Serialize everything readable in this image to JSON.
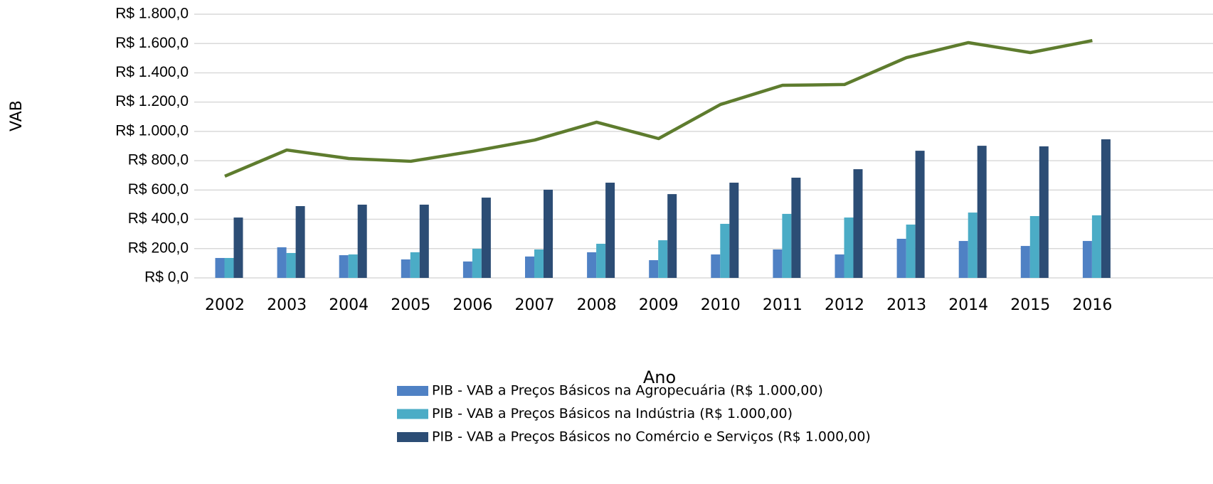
{
  "chart_data": {
    "type": "bar_line",
    "xlabel": "Ano",
    "ylabel": "VAB",
    "categories": [
      "2002",
      "2003",
      "2004",
      "2005",
      "2006",
      "2007",
      "2008",
      "2009",
      "2010",
      "2011",
      "2012",
      "2013",
      "2014",
      "2015",
      "2016"
    ],
    "ylim": [
      0,
      1800
    ],
    "yticks": [
      {
        "value": 0,
        "label": "R$ 0,0"
      },
      {
        "value": 200,
        "label": "R$ 200,0"
      },
      {
        "value": 400,
        "label": "R$ 400,0"
      },
      {
        "value": 600,
        "label": "R$ 600,0"
      },
      {
        "value": 800,
        "label": "R$ 800,0"
      },
      {
        "value": 1000,
        "label": "R$ 1.000,0"
      },
      {
        "value": 1200,
        "label": "R$ 1.200,0"
      },
      {
        "value": 1400,
        "label": "R$ 1.400,0"
      },
      {
        "value": 1600,
        "label": "R$ 1.600,0"
      },
      {
        "value": 1800,
        "label": "R$ 1.800,0"
      }
    ],
    "grid": true,
    "series": [
      {
        "name": "PIB - VAB a Preços Básicos na Agropecuária (R$ 1.000,00)",
        "type": "bar",
        "color": "#4f81c4",
        "values": [
          136,
          209,
          155,
          126,
          112,
          146,
          175,
          121,
          160,
          194,
          160,
          267,
          252,
          218,
          252
        ]
      },
      {
        "name": "PIB - VAB a Preços Básicos na Indústria (R$ 1.000,00)",
        "type": "bar",
        "color": "#4bacc6",
        "values": [
          136,
          170,
          160,
          175,
          199,
          194,
          233,
          257,
          369,
          437,
          412,
          364,
          446,
          422,
          427
        ]
      },
      {
        "name": "PIB - VAB a Preços Básicos no Comércio e Serviços (R$ 1.000,00)",
        "type": "bar",
        "color": "#2c4d75",
        "values": [
          412,
          490,
          500,
          500,
          548,
          602,
          650,
          572,
          650,
          684,
          742,
          868,
          902,
          898,
          946
        ]
      },
      {
        "type": "line",
        "color": "#5e7c2e",
        "values": [
          694,
          873,
          815,
          796,
          864,
          941,
          1063,
          951,
          1184,
          1315,
          1320,
          1504,
          1606,
          1538,
          1620
        ]
      }
    ]
  }
}
